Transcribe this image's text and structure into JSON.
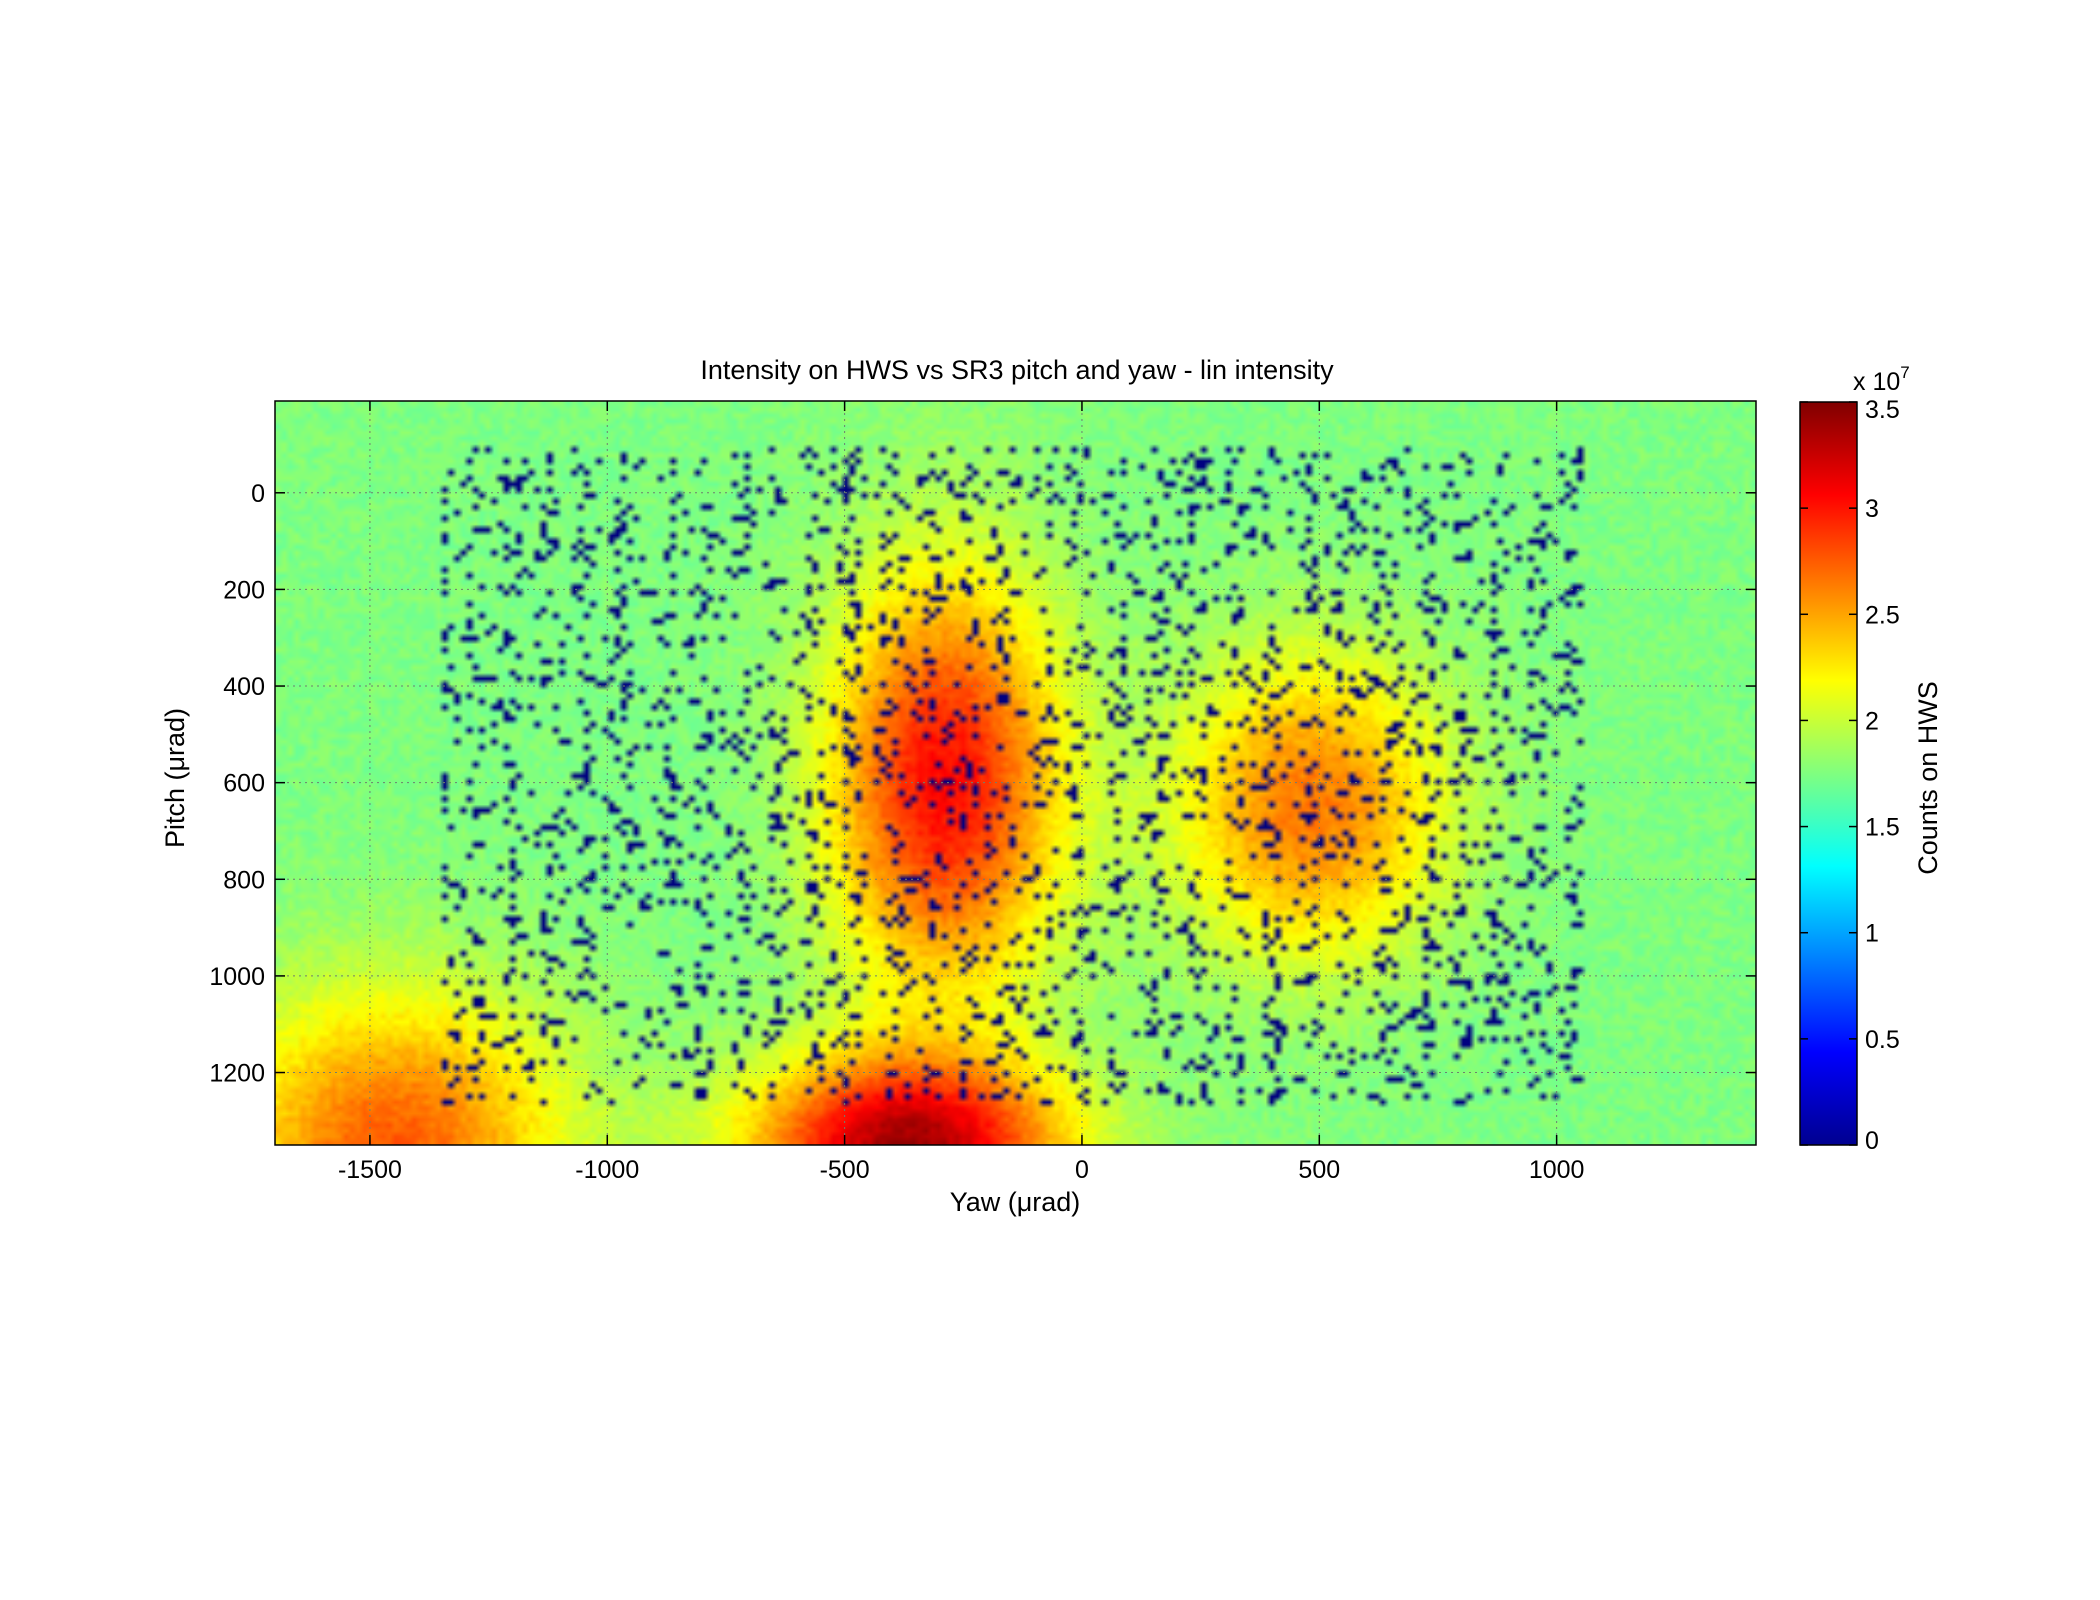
{
  "chart_data": {
    "type": "heatmap",
    "title": "Intensity on HWS vs SR3 pitch and yaw - lin intensity",
    "xlabel": "Yaw (μrad)",
    "ylabel": "Pitch (μrad)",
    "colorbar_label": "Counts on HWS",
    "colorbar_exponent_base": "x 10",
    "colorbar_exponent_power": "7",
    "xlim": [
      -1700,
      1420
    ],
    "ylim": [
      -190,
      1350
    ],
    "y_reversed": true,
    "clim": [
      0,
      35000000
    ],
    "grid": true,
    "colormap": "jet",
    "x_ticks": [
      {
        "value": -1500,
        "label": "-1500"
      },
      {
        "value": -1000,
        "label": "-1000"
      },
      {
        "value": -500,
        "label": "-500"
      },
      {
        "value": 0,
        "label": "0"
      },
      {
        "value": 500,
        "label": "500"
      },
      {
        "value": 1000,
        "label": "1000"
      }
    ],
    "y_ticks": [
      {
        "value": 0,
        "label": "0"
      },
      {
        "value": 200,
        "label": "200"
      },
      {
        "value": 400,
        "label": "400"
      },
      {
        "value": 600,
        "label": "600"
      },
      {
        "value": 800,
        "label": "800"
      },
      {
        "value": 1000,
        "label": "1000"
      },
      {
        "value": 1200,
        "label": "1200"
      }
    ],
    "colorbar_ticks": [
      {
        "value": 0,
        "label": "0"
      },
      {
        "value": 5000000,
        "label": "0.5"
      },
      {
        "value": 10000000,
        "label": "1"
      },
      {
        "value": 15000000,
        "label": "1.5"
      },
      {
        "value": 20000000,
        "label": "2"
      },
      {
        "value": 25000000,
        "label": "2.5"
      },
      {
        "value": 30000000,
        "label": "3"
      },
      {
        "value": 35000000,
        "label": "3.5"
      }
    ],
    "background_level": 17500000,
    "intensity_blobs": [
      {
        "x": -290,
        "y": 600,
        "sx": 170,
        "sy": 300,
        "amp": 13000000
      },
      {
        "x": 480,
        "y": 650,
        "sx": 200,
        "sy": 220,
        "amp": 9000000
      },
      {
        "x": -370,
        "y": 1350,
        "sx": 230,
        "sy": 130,
        "amp": 16000000
      },
      {
        "x": -1450,
        "y": 1350,
        "sx": 250,
        "sy": 220,
        "amp": 10000000
      }
    ],
    "dropout_region": {
      "x": [
        -1350,
        1060
      ],
      "y": [
        -100,
        1270
      ]
    },
    "colors": {
      "axes_background": "#80ff80",
      "grid": "#6f7f6f",
      "dropout": "#000080"
    }
  }
}
